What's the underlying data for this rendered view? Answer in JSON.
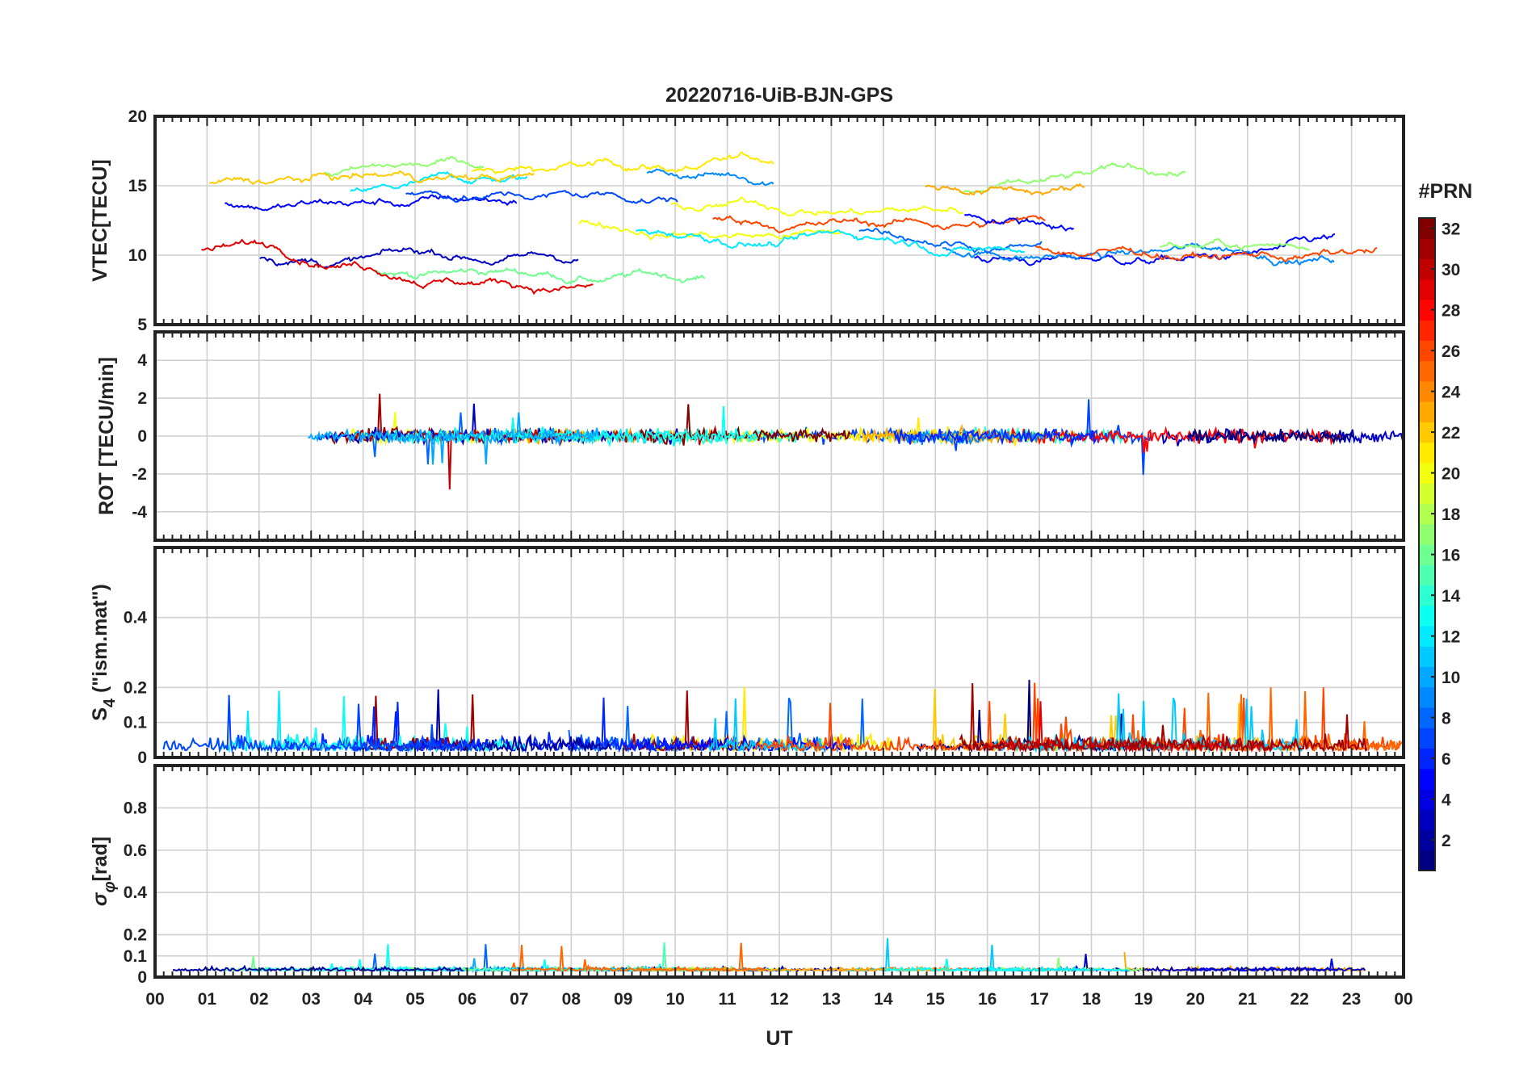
{
  "chart_data": {
    "title": "20220716-UiB-BJN-GPS",
    "xlabel": "UT",
    "x_tick_labels": [
      "00",
      "01",
      "02",
      "03",
      "04",
      "05",
      "06",
      "07",
      "08",
      "09",
      "10",
      "11",
      "12",
      "13",
      "14",
      "15",
      "16",
      "17",
      "18",
      "19",
      "20",
      "21",
      "22",
      "23",
      "00"
    ],
    "x_range_hours": [
      0,
      24
    ],
    "panels": [
      {
        "type": "line",
        "ylabel": "VTEC[TECU]",
        "ylim": [
          5,
          20
        ],
        "yticks": [
          5,
          10,
          15,
          20
        ],
        "ytick_labels": [
          "5",
          "10",
          "15",
          "20"
        ],
        "grid": true
      },
      {
        "type": "line",
        "ylabel": "ROT [TECU/min]",
        "ylim": [
          -5.5,
          5.5
        ],
        "yticks": [
          -4,
          -2,
          0,
          2,
          4
        ],
        "ytick_labels": [
          "-4",
          "-2",
          "0",
          "2",
          "4"
        ],
        "grid": true
      },
      {
        "type": "line",
        "ylabel_main": "S",
        "ylabel_sub": "4",
        "ylabel_rest": " (\"ism.mat\")",
        "ylim": [
          0,
          0.6
        ],
        "yticks": [
          0,
          0.1,
          0.2,
          0.4
        ],
        "ytick_labels": [
          "0",
          "0.1",
          "0.2",
          "0.4"
        ],
        "grid": true
      },
      {
        "type": "line",
        "ylabel_main": "σ",
        "ylabel_sub": "φ",
        "ylabel_rest": "[rad]",
        "ylim": [
          0,
          1
        ],
        "yticks": [
          0,
          0.1,
          0.2,
          0.4,
          0.6,
          0.8
        ],
        "ytick_labels": [
          "0",
          "0.1",
          "0.2",
          "0.4",
          "0.6",
          "0.8"
        ],
        "grid": true
      }
    ],
    "colorbar": {
      "label": "#PRN",
      "range": [
        1,
        32
      ],
      "ticks": [
        2,
        4,
        6,
        8,
        10,
        12,
        14,
        16,
        18,
        20,
        22,
        24,
        26,
        28,
        30,
        32
      ],
      "tick_labels": [
        "2",
        "4",
        "6",
        "8",
        "10",
        "12",
        "14",
        "16",
        "18",
        "20",
        "22",
        "24",
        "26",
        "28",
        "30",
        "32"
      ],
      "colormap": "jet"
    },
    "series_color_by": "PRN (1-32)"
  }
}
